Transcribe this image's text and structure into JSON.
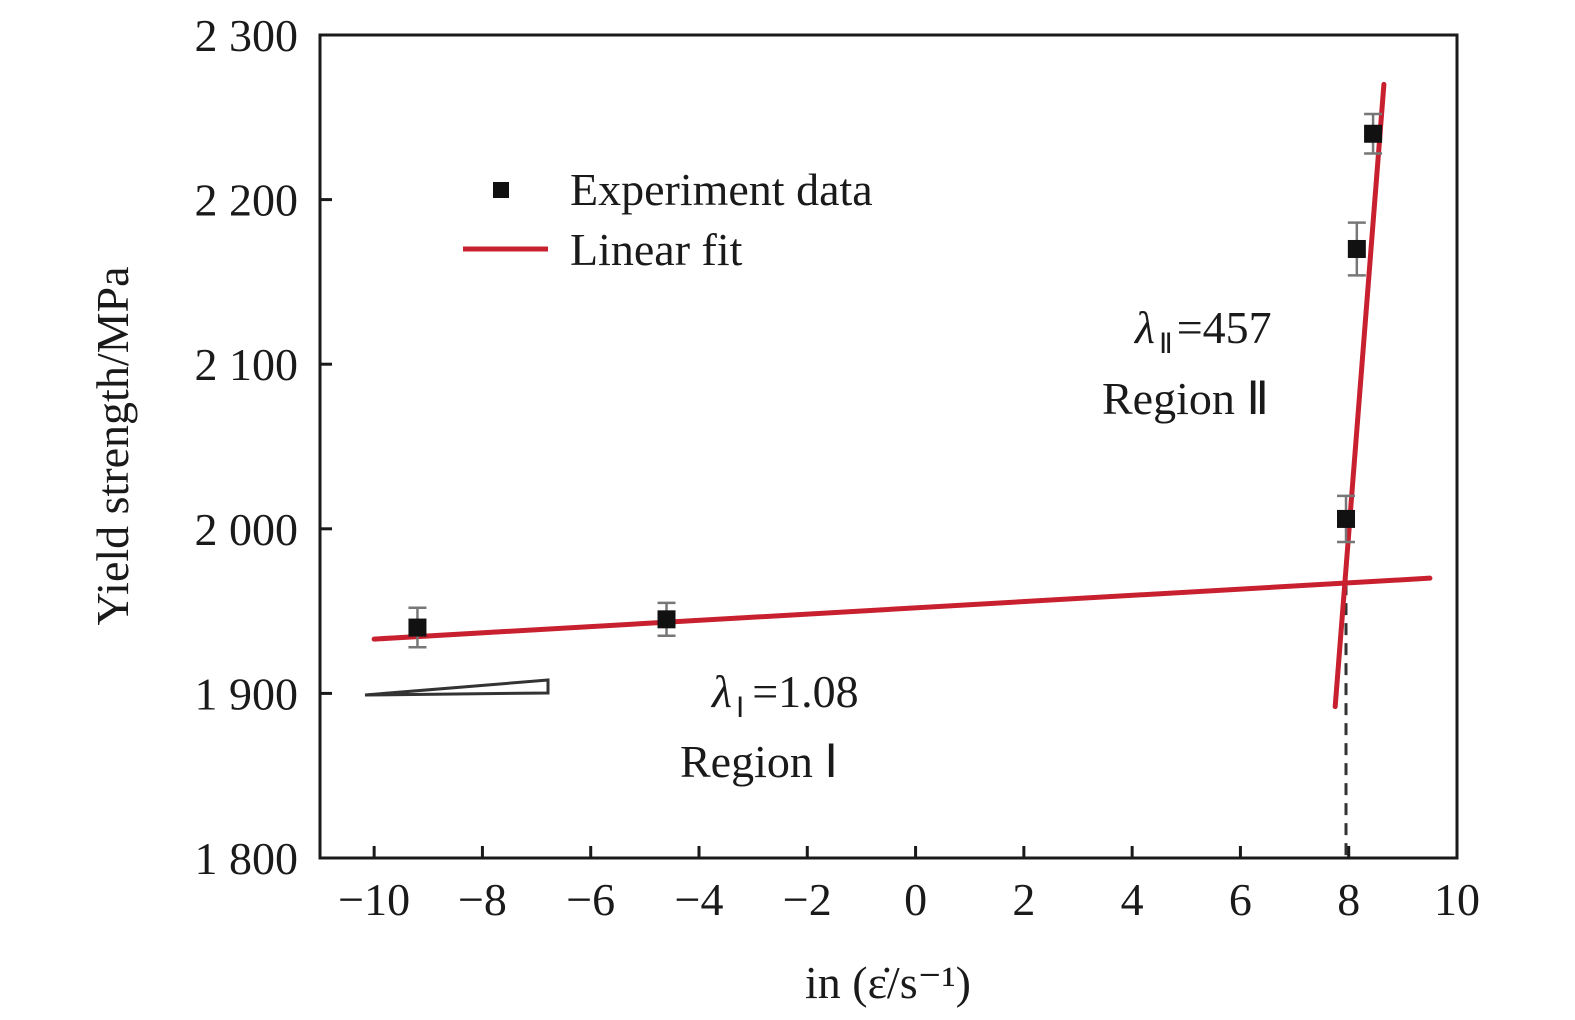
{
  "chart_data": {
    "type": "scatter",
    "xlabel": "in (ε̇/s⁻¹)",
    "ylabel": "Yield strength/MPa",
    "xlim": [
      -11,
      10
    ],
    "ylim": [
      1800,
      2300
    ],
    "x_ticks": [
      -10,
      -8,
      -6,
      -4,
      -2,
      0,
      2,
      4,
      6,
      8,
      10
    ],
    "x_tick_labels": [
      "−10",
      "−8",
      "−6",
      "−4",
      "−2",
      "0",
      "2",
      "4",
      "6",
      "8",
      "10"
    ],
    "y_ticks": [
      1800,
      1900,
      2000,
      2100,
      2200,
      2300
    ],
    "y_tick_labels": [
      "1 800",
      "1 900",
      "2 000",
      "2 100",
      "2 200",
      "2 300"
    ],
    "grid": false,
    "legend_position": "top-left",
    "legend": {
      "experiment": "Experiment data",
      "fit": "Linear fit"
    },
    "series": [
      {
        "name": "Experiment data",
        "type": "scatter",
        "color": "#111111",
        "points": [
          {
            "x": -9.2,
            "y": 1940,
            "err": 12
          },
          {
            "x": -4.6,
            "y": 1945,
            "err": 10
          },
          {
            "x": 7.95,
            "y": 2006,
            "err": 14
          },
          {
            "x": 8.15,
            "y": 2170,
            "err": 16
          },
          {
            "x": 8.45,
            "y": 2240,
            "err": 12
          }
        ]
      },
      {
        "name": "Linear fit",
        "type": "line",
        "color": "#c8202f",
        "segments": [
          {
            "x": [
              -10,
              9.5
            ],
            "y": [
              1933,
              1970
            ]
          },
          {
            "x": [
              7.75,
              8.65
            ],
            "y": [
              1892,
              2270
            ]
          }
        ]
      }
    ],
    "annotations": {
      "region1": {
        "lambda": "λ",
        "subscript": "Ⅰ",
        "value": "=1.08",
        "label": "Region Ⅰ",
        "x": -3.7,
        "y": 1900
      },
      "region2": {
        "lambda": "λ",
        "subscript": "Ⅱ",
        "value": "=457",
        "label": "Region Ⅱ",
        "x": 3.6,
        "y": 2118
      }
    },
    "reference_line": {
      "x": 7.95,
      "y_from": 1967,
      "y_to": 1800,
      "style": "dashed",
      "color": "#333333"
    }
  }
}
